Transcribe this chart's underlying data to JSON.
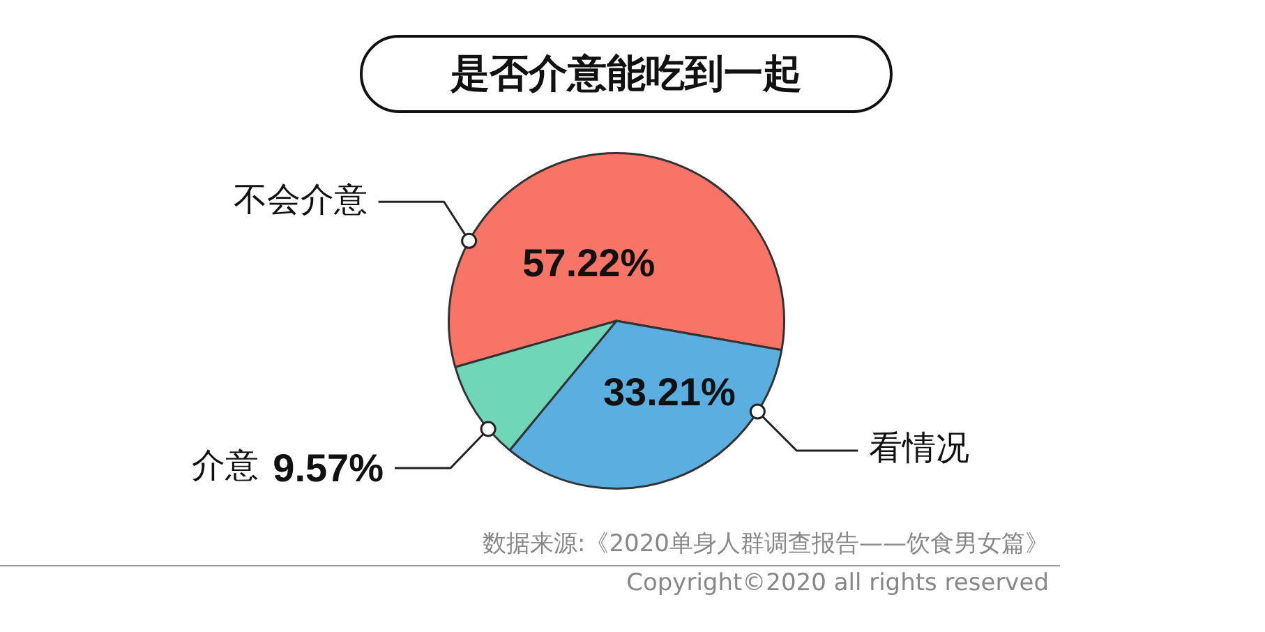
{
  "chart_data": {
    "type": "pie",
    "title": "是否介意能吃到一起",
    "categories": [
      "不会介意",
      "看情况",
      "介意"
    ],
    "values": [
      57.22,
      33.21,
      9.57
    ],
    "colors": [
      "#f77466",
      "#5aaee0",
      "#6fd6b8"
    ],
    "value_labels": [
      "57.22%",
      "33.21%",
      "9.57%"
    ],
    "legend": false,
    "annotations": [
      "数据来源:《2020单身人群调查报告——饮食男女篇》",
      "Copyright©2020 all rights reserved"
    ]
  }
}
